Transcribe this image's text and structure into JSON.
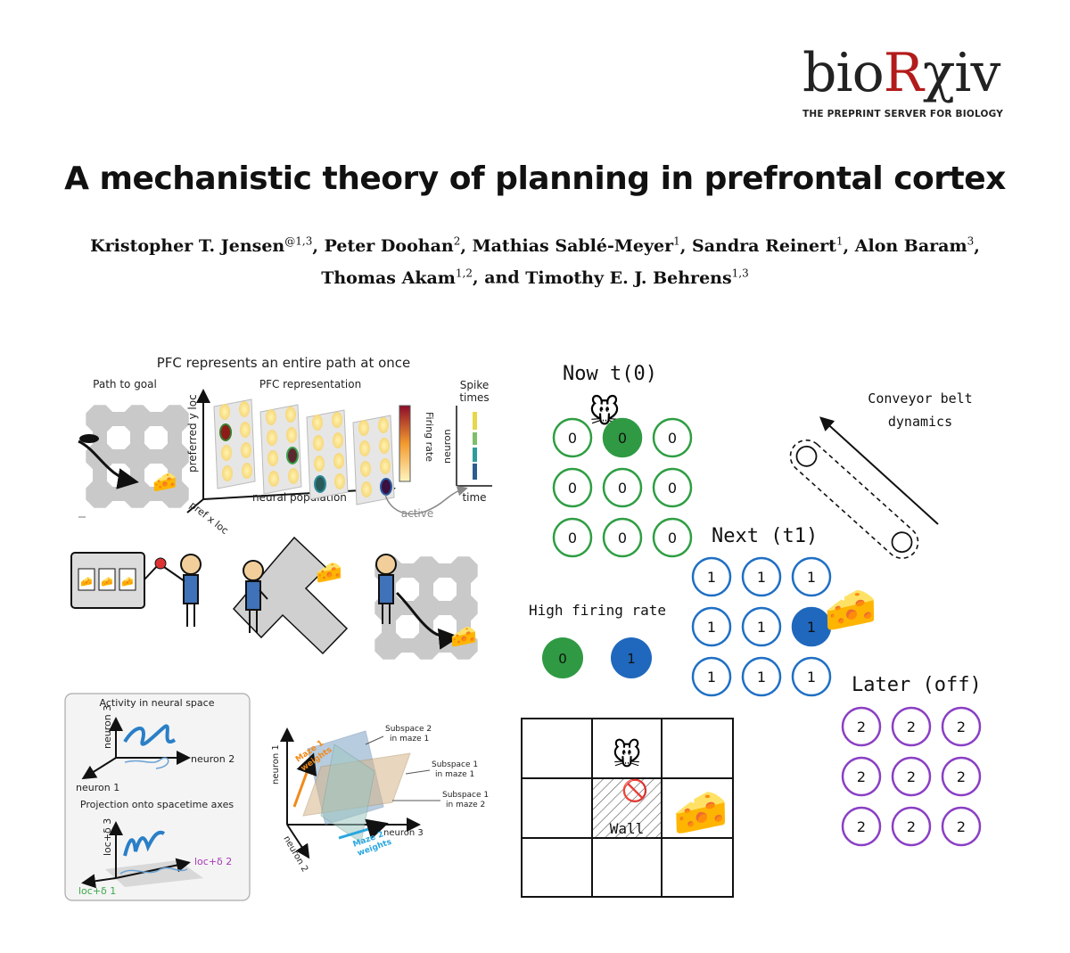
{
  "logo": {
    "text_a": "bio",
    "text_r": "R",
    "text_b": "χiv",
    "tagline": "THE PREPRINT SERVER FOR BIOLOGY"
  },
  "title": "A mechanistic theory of planning in prefrontal cortex",
  "authors": [
    {
      "name": "Kristopher T. Jensen",
      "sup": "@1,3"
    },
    {
      "name": "Peter Doohan",
      "sup": "2"
    },
    {
      "name": "Mathias Sablé-Meyer",
      "sup": "1"
    },
    {
      "name": "Sandra Reinert",
      "sup": "1"
    },
    {
      "name": "Alon Baram",
      "sup": "3"
    },
    {
      "name": "Thomas Akam",
      "sup": "1,2"
    },
    {
      "name": "Timothy E. J. Behrens",
      "sup": "1,3"
    }
  ],
  "fig_a": {
    "heading": "PFC represents an entire path at once",
    "path_to_goal": "Path to goal",
    "pfc_representation": "PFC representation",
    "pref_y": "preferred y loc",
    "pref_x": "pref x loc",
    "neural_population": "neural population",
    "firing_rate": "Firing rate",
    "spike_times": [
      "Spike",
      "times"
    ],
    "neuron": "neuron",
    "time": "time",
    "active": "active"
  },
  "fig_c": {
    "activity_title": "Activity in neural space",
    "neuron1": "neuron 1",
    "neuron2": "neuron 2",
    "neuron3": "neuron 3",
    "projection_title": "Projection onto spacetime axes",
    "loc_d1": "loc+δ 1",
    "loc_d2": "loc+δ 2",
    "loc_d3": "loc+δ 3"
  },
  "fig_d": {
    "neuron1": "neuron 1",
    "neuron2": "neuron 2",
    "neuron3": "neuron 3",
    "maze1_weights": [
      "Maze 1",
      "weights"
    ],
    "maze2_weights": [
      "Maze 2",
      "weights"
    ],
    "sub2_m1": [
      "Subspace 2",
      "in maze 1"
    ],
    "sub1_m1": [
      "Subspace 1",
      "in maze 1"
    ],
    "sub1_m2": [
      "Subspace 1",
      "in maze 2"
    ]
  },
  "sketch": {
    "now": "Now t(0)",
    "next": "Next (t1)",
    "later": "Later (off)",
    "conveyor": [
      "Conveyor belt",
      "dynamics"
    ],
    "high_firing": "High firing rate",
    "legend_green": "0",
    "legend_blue": "1",
    "wall": "Wall",
    "now_grid": [
      "0",
      "0",
      "0",
      "0",
      "0",
      "0",
      "0",
      "0",
      "0"
    ],
    "now_active_index": 1,
    "next_grid": [
      "1",
      "1",
      "1",
      "1",
      "1",
      "1",
      "1",
      "1",
      "1"
    ],
    "next_active_index": 5,
    "later_grid": [
      "2",
      "2",
      "2",
      "2",
      "2",
      "2",
      "2",
      "2",
      "2"
    ],
    "mouse_emoji": "🐭",
    "cheese_emoji": "🧀",
    "no_emoji": "🚫",
    "colors": {
      "green": "#2e9e43",
      "blue": "#1f6fc4",
      "purple": "#8a3fc4",
      "fill_green": "#2f9a43",
      "fill_blue": "#1f68bd"
    }
  }
}
